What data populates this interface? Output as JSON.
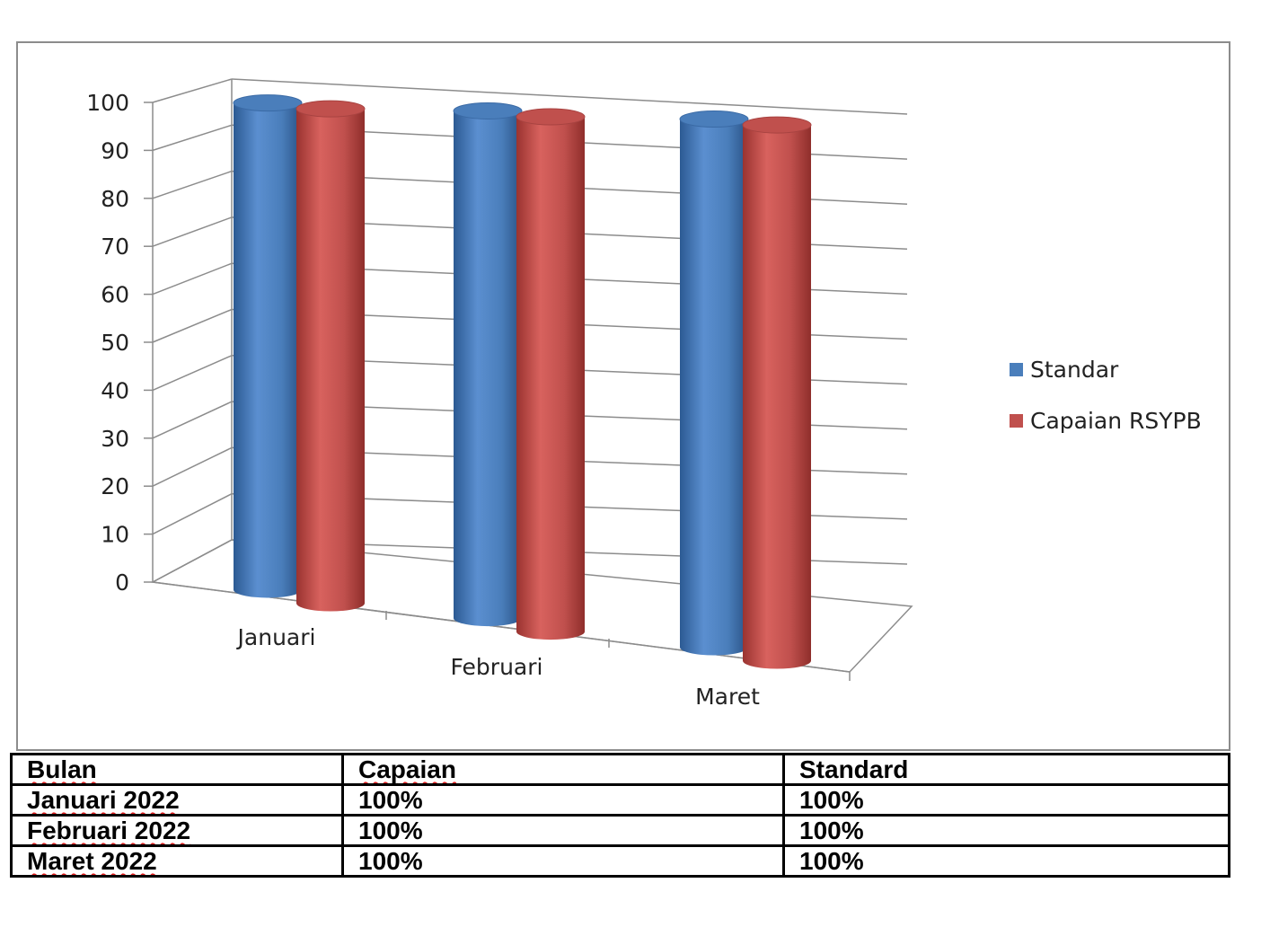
{
  "chart_data": {
    "type": "bar",
    "categories": [
      "Januari",
      "Februari",
      "Maret"
    ],
    "series": [
      {
        "name": "Standar",
        "values": [
          100,
          100,
          100
        ],
        "color": "#4a7ebb"
      },
      {
        "name": "Capaian RSYPB",
        "values": [
          100,
          100,
          100
        ],
        "color": "#c0504d"
      }
    ],
    "yticks": [
      "0",
      "10",
      "20",
      "30",
      "40",
      "50",
      "60",
      "70",
      "80",
      "90",
      "100"
    ],
    "ylim": [
      0,
      100
    ],
    "grid": true,
    "legend": "right",
    "style": "3d-cylinder"
  },
  "table": {
    "headers": [
      "Bulan",
      "Capaian",
      "Standard"
    ],
    "rows": [
      [
        "Januari 2022",
        "100%",
        "100%"
      ],
      [
        "Februari 2022",
        "100%",
        "100%"
      ],
      [
        "Maret 2022",
        "100%",
        "100%"
      ]
    ]
  }
}
